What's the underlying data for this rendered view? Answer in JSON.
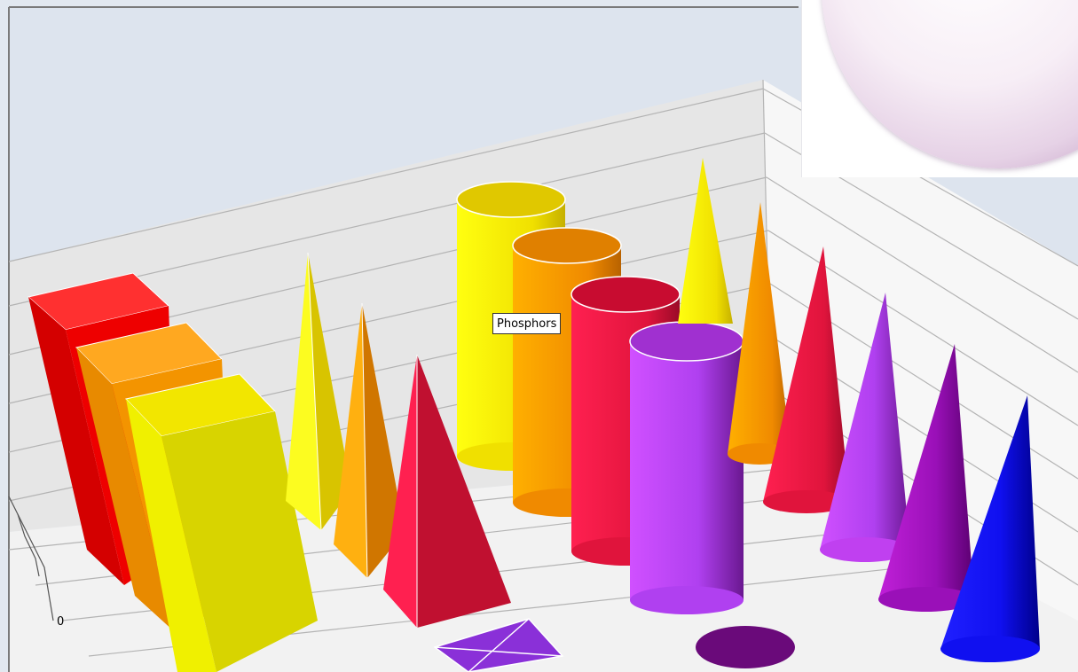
{
  "tooltip": {
    "text": "Phosphors"
  },
  "chart_data": {
    "type": "bar",
    "style": "3d",
    "grid": true,
    "axis_ticks": [
      "0"
    ],
    "series": [
      {
        "shape": "box",
        "colors": [
          "#e60000",
          "#f39400",
          "#e0d800"
        ]
      },
      {
        "shape": "pyramid",
        "colors": [
          "#e8d800",
          "#e88a00",
          "#d0143c"
        ]
      },
      {
        "shape": "pyramid",
        "colors": [
          "#8a2be2"
        ]
      },
      {
        "shape": "cylinder",
        "colors": [
          "#f5e000",
          "#f08a00",
          "#e0143c",
          "#b040f0"
        ]
      },
      {
        "shape": "cylinder",
        "colors": [
          "#6a0a8a"
        ]
      },
      {
        "shape": "cone",
        "colors": [
          "#f5e000",
          "#f08a00",
          "#e0143c",
          "#c040f0",
          "#9a10b8",
          "#1010f0"
        ]
      }
    ]
  },
  "colors": {
    "wall_back": "#dde4ee",
    "wall_side": "#f4f4f4",
    "floor": "#f1f1f1",
    "grid": "#b4b4b4"
  }
}
